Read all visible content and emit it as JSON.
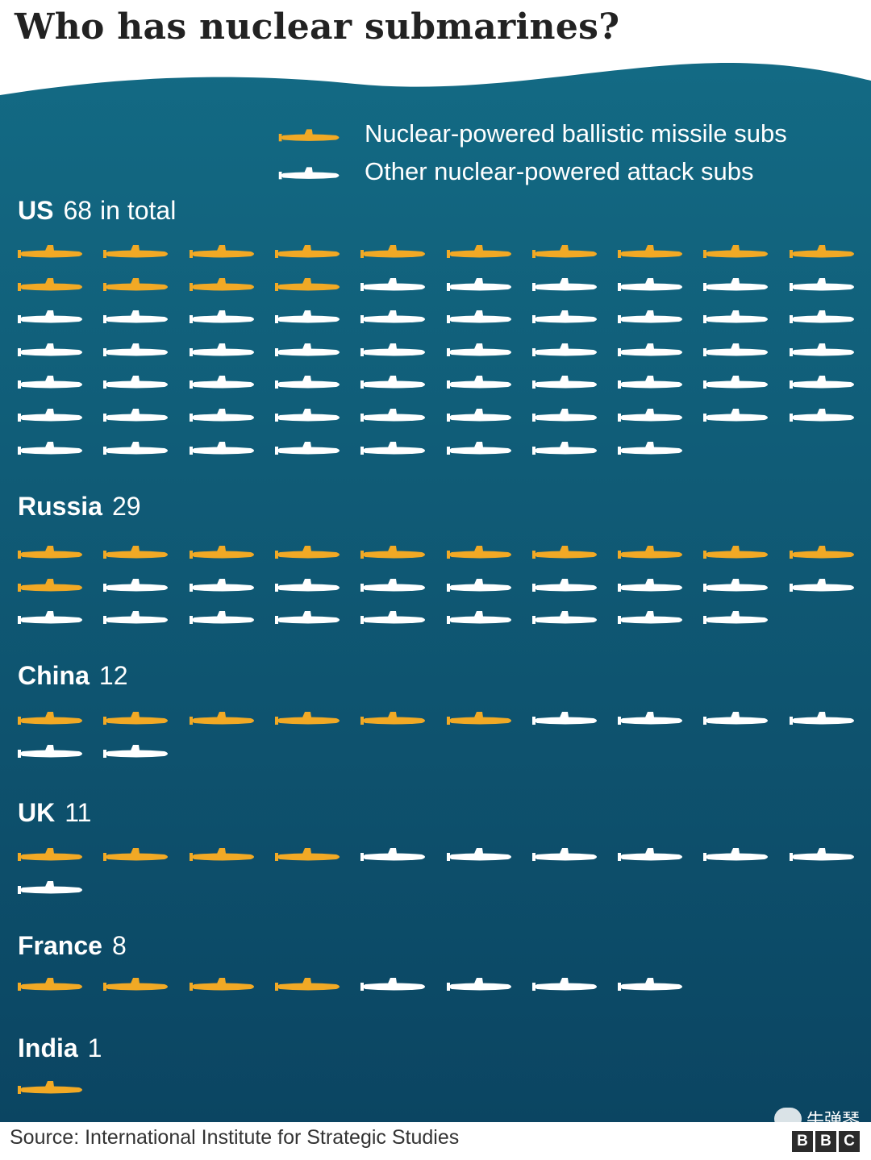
{
  "title": "Who has nuclear submarines?",
  "source": "Source: International Institute for Strategic Studies",
  "watermark": "牛弹琴",
  "logo": [
    "B",
    "B",
    "C"
  ],
  "colors": {
    "sea_top": "#136a84",
    "sea_bottom": "#0b4562",
    "ballistic": "#f1a925",
    "attack": "#ffffff",
    "title": "#222222"
  },
  "legend": [
    {
      "label": "Nuclear-powered ballistic missile subs",
      "series": "ballistic"
    },
    {
      "label": "Other nuclear-powered attack subs",
      "series": "attack"
    }
  ],
  "chart_data": {
    "type": "table",
    "title": "Who has nuclear submarines?",
    "unit": "one icon per submarine",
    "icons_per_row": 10,
    "series": [
      {
        "name": "Nuclear-powered ballistic missile subs",
        "key": "ballistic"
      },
      {
        "name": "Other nuclear-powered attack subs",
        "key": "attack"
      }
    ],
    "countries": [
      {
        "name": "US",
        "total": 68,
        "suffix": "in total",
        "ballistic": 14,
        "attack": 54
      },
      {
        "name": "Russia",
        "total": 29,
        "suffix": "",
        "ballistic": 11,
        "attack": 18
      },
      {
        "name": "China",
        "total": 12,
        "suffix": "",
        "ballistic": 6,
        "attack": 6
      },
      {
        "name": "UK",
        "total": 11,
        "suffix": "",
        "ballistic": 4,
        "attack": 7
      },
      {
        "name": "France",
        "total": 8,
        "suffix": "",
        "ballistic": 4,
        "attack": 4
      },
      {
        "name": "India",
        "total": 1,
        "suffix": "",
        "ballistic": 1,
        "attack": 0
      }
    ]
  }
}
